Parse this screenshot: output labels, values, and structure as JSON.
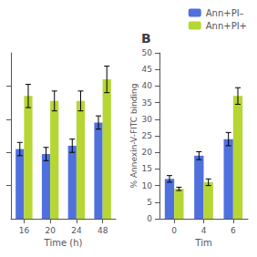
{
  "chart_data": [
    {
      "type": "bar",
      "categories": [
        "16",
        "20",
        "24",
        "48"
      ],
      "xlabel": "Time (h)",
      "ylim": [
        0,
        50
      ],
      "yticks": [
        10,
        20,
        30,
        40
      ],
      "tick_labels": "x",
      "grid": false,
      "series": [
        {
          "values": [
            21.0,
            19.5,
            22.0,
            29.0
          ],
          "errors": [
            2.0,
            2.0,
            2.0,
            2.0
          ]
        },
        {
          "values": [
            37.0,
            35.5,
            35.5,
            42.0
          ],
          "errors": [
            3.5,
            3.0,
            3.0,
            4.0
          ]
        }
      ]
    },
    {
      "type": "bar",
      "title": "B",
      "categories": [
        "0",
        "4",
        "6"
      ],
      "xlabel": "Tim",
      "ylabel": "% Annexin-V-FITC binding",
      "ylim": [
        0,
        50
      ],
      "yticks": [
        0,
        5,
        10,
        15,
        20,
        25,
        30,
        35,
        40,
        45,
        50
      ],
      "grid": false,
      "legend": "upper right",
      "series": [
        {
          "name": "Ann+PI–",
          "values": [
            12.0,
            19.0,
            24.0
          ],
          "errors": [
            1.0,
            1.2,
            2.0
          ]
        },
        {
          "name": "Ann+PI+",
          "values": [
            9.0,
            11.0,
            37.0
          ],
          "errors": [
            0.5,
            1.0,
            2.5
          ]
        }
      ]
    }
  ]
}
